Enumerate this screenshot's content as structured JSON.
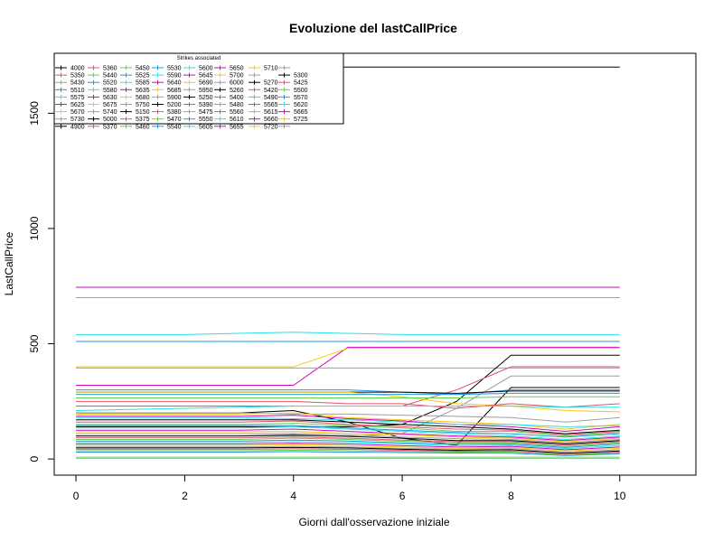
{
  "chart_data": {
    "type": "line",
    "title": "Evoluzione del lastCallPrice",
    "xlabel": "Giorni dall'osservazione iniziale",
    "ylabel": "LastCallPrice",
    "xlim": [
      -0.4,
      11.4
    ],
    "ylim": [
      -70,
      1760
    ],
    "x_ticks": [
      0,
      2,
      4,
      6,
      8,
      10
    ],
    "y_ticks": [
      0,
      500,
      1000,
      1500
    ],
    "x": [
      0,
      1,
      2,
      3,
      4,
      5,
      6,
      7,
      8,
      9,
      10
    ],
    "legend": {
      "title": "Strikes associated",
      "placement": "top-left",
      "columns": 8,
      "entries": [
        "4000",
        "5350",
        "5430",
        "5510",
        "5575",
        "5625",
        "5670",
        "5730",
        "4900",
        "5360",
        "5440",
        "5520",
        "5580",
        "5630",
        "5675",
        "5740",
        "5000",
        "5370",
        "5450",
        "5525",
        "5585",
        "5635",
        "5680",
        "5750",
        "5150",
        "5375",
        "5460",
        "5530",
        "5590",
        "5640",
        "5685",
        "5900",
        "5200",
        "5380",
        "5470",
        "5540",
        "5600",
        "5645",
        "5690",
        "5950",
        "5250",
        "5390",
        "5475",
        "5550",
        "5605",
        "5650",
        "5700",
        "6000",
        "5260",
        "5400",
        "5480",
        "5560",
        "5610",
        "5655",
        "5710",
        "",
        "5270",
        "5420",
        "5490",
        "5565",
        "5615",
        "5660",
        "5720",
        "",
        "5300",
        "5425",
        "5500",
        "5570",
        "5620",
        "5665",
        "5725",
        ""
      ],
      "colors": [
        "#000000",
        "#DF536B",
        "#61D04F",
        "#2297E6",
        "#28E2E5",
        "#CD0BBC",
        "#F5C710",
        "#9E9E9E"
      ]
    },
    "series": [
      {
        "values": [
          1700,
          1700,
          1700,
          1700,
          1700,
          1700,
          1700,
          1700,
          1700,
          1700,
          1700
        ],
        "color": "#000000"
      },
      {
        "values": [
          745,
          745,
          745,
          745,
          745,
          745,
          745,
          745,
          745,
          745,
          745
        ],
        "color": "#CD0BBC"
      },
      {
        "values": [
          700,
          700,
          700,
          700,
          700,
          700,
          700,
          700,
          700,
          700,
          700
        ],
        "color": "#61D04F"
      },
      {
        "values": [
          540,
          540,
          540,
          545,
          550,
          545,
          540,
          540,
          540,
          540,
          540
        ],
        "color": "#28E2E5"
      },
      {
        "values": [
          510,
          510,
          510,
          510,
          510,
          510,
          510,
          510,
          510,
          510,
          510
        ],
        "color": "#2297E6"
      },
      {
        "values": [
          320,
          320,
          320,
          320,
          320,
          485,
          485,
          485,
          485,
          485,
          485
        ],
        "color": "#CD0BBC"
      },
      {
        "values": [
          400,
          400,
          400,
          400,
          400,
          480,
          480,
          480,
          480,
          480,
          480
        ],
        "color": "#F5C710"
      },
      {
        "values": [
          395,
          395,
          395,
          395,
          395,
          395,
          395,
          395,
          395,
          395,
          395
        ],
        "color": "#9E9E9E"
      },
      {
        "values": [
          140,
          140,
          140,
          140,
          140,
          140,
          150,
          250,
          450,
          450,
          450
        ],
        "color": "#000000"
      },
      {
        "values": [
          230,
          230,
          230,
          230,
          230,
          230,
          230,
          300,
          400,
          400,
          400
        ],
        "color": "#DF536B"
      },
      {
        "values": [
          100,
          100,
          100,
          100,
          100,
          100,
          110,
          220,
          360,
          360,
          360
        ],
        "color": "#9E9E9E"
      },
      {
        "values": [
          200,
          200,
          200,
          200,
          210,
          160,
          90,
          60,
          310,
          310,
          310
        ],
        "color": "#000000"
      },
      {
        "values": [
          300,
          300,
          300,
          300,
          300,
          300,
          290,
          280,
          300,
          300,
          300
        ],
        "color": "#2297E6"
      },
      {
        "values": [
          290,
          290,
          290,
          290,
          290,
          290,
          290,
          285,
          295,
          295,
          295
        ],
        "color": "#000000"
      },
      {
        "values": [
          290,
          290,
          290,
          290,
          290,
          290,
          270,
          240,
          230,
          210,
          205
        ],
        "color": "#F5C710"
      },
      {
        "values": [
          280,
          280,
          280,
          280,
          280,
          280,
          280,
          280,
          285,
          285,
          285
        ],
        "color": "#2297E6"
      },
      {
        "values": [
          265,
          265,
          265,
          265,
          265,
          265,
          265,
          265,
          270,
          270,
          270
        ],
        "color": "#61D04F"
      },
      {
        "values": [
          250,
          250,
          250,
          250,
          250,
          240,
          240,
          220,
          240,
          225,
          240
        ],
        "color": "#DF536B"
      },
      {
        "values": [
          210,
          215,
          220,
          225,
          230,
          230,
          230,
          230,
          230,
          225,
          225
        ],
        "color": "#28E2E5"
      },
      {
        "values": [
          200,
          200,
          200,
          200,
          195,
          195,
          190,
          185,
          180,
          160,
          180
        ],
        "color": "#9E9E9E"
      },
      {
        "values": [
          195,
          195,
          195,
          195,
          200,
          180,
          170,
          160,
          150,
          130,
          150
        ],
        "color": "#F5C710"
      },
      {
        "values": [
          185,
          185,
          185,
          185,
          190,
          175,
          165,
          150,
          140,
          120,
          140
        ],
        "color": "#CD0BBC"
      },
      {
        "values": [
          180,
          180,
          180,
          180,
          175,
          170,
          160,
          150,
          150,
          140,
          145
        ],
        "color": "#28E2E5"
      },
      {
        "values": [
          170,
          170,
          170,
          170,
          170,
          160,
          150,
          140,
          130,
          110,
          125
        ],
        "color": "#000000"
      },
      {
        "values": [
          160,
          160,
          160,
          160,
          165,
          150,
          140,
          130,
          125,
          105,
          120
        ],
        "color": "#DF536B"
      },
      {
        "values": [
          150,
          150,
          150,
          150,
          155,
          145,
          135,
          120,
          120,
          100,
          115
        ],
        "color": "#61D04F"
      },
      {
        "values": [
          145,
          145,
          145,
          145,
          145,
          135,
          125,
          115,
          110,
          95,
          110
        ],
        "color": "#2297E6"
      },
      {
        "values": [
          135,
          135,
          135,
          135,
          140,
          130,
          120,
          110,
          100,
          85,
          100
        ],
        "color": "#28E2E5"
      },
      {
        "values": [
          125,
          125,
          125,
          125,
          130,
          120,
          110,
          100,
          95,
          80,
          95
        ],
        "color": "#CD0BBC"
      },
      {
        "values": [
          118,
          118,
          118,
          118,
          120,
          112,
          105,
          95,
          90,
          75,
          90
        ],
        "color": "#F5C710"
      },
      {
        "values": [
          110,
          110,
          110,
          110,
          112,
          105,
          95,
          88,
          85,
          70,
          85
        ],
        "color": "#9E9E9E"
      },
      {
        "values": [
          100,
          100,
          100,
          100,
          105,
          98,
          90,
          80,
          80,
          65,
          80
        ],
        "color": "#000000"
      },
      {
        "values": [
          92,
          92,
          92,
          92,
          96,
          90,
          82,
          75,
          75,
          60,
          75
        ],
        "color": "#DF536B"
      },
      {
        "values": [
          85,
          85,
          85,
          85,
          90,
          85,
          77,
          70,
          70,
          55,
          70
        ],
        "color": "#61D04F"
      },
      {
        "values": [
          78,
          78,
          78,
          78,
          82,
          78,
          70,
          64,
          65,
          50,
          65
        ],
        "color": "#2297E6"
      },
      {
        "values": [
          72,
          72,
          72,
          72,
          75,
          72,
          65,
          58,
          60,
          45,
          58
        ],
        "color": "#28E2E5"
      },
      {
        "values": [
          65,
          65,
          65,
          65,
          68,
          65,
          58,
          52,
          55,
          40,
          52
        ],
        "color": "#CD0BBC"
      },
      {
        "values": [
          58,
          58,
          58,
          58,
          62,
          58,
          52,
          46,
          50,
          35,
          46
        ],
        "color": "#F5C710"
      },
      {
        "values": [
          52,
          52,
          52,
          52,
          55,
          52,
          46,
          42,
          45,
          30,
          40
        ],
        "color": "#9E9E9E"
      },
      {
        "values": [
          48,
          48,
          48,
          48,
          50,
          48,
          42,
          38,
          40,
          25,
          35
        ],
        "color": "#000000"
      },
      {
        "values": [
          42,
          42,
          42,
          42,
          44,
          42,
          38,
          34,
          35,
          20,
          30
        ],
        "color": "#DF536B"
      },
      {
        "values": [
          36,
          36,
          36,
          36,
          38,
          36,
          33,
          30,
          30,
          18,
          26
        ],
        "color": "#61D04F"
      },
      {
        "values": [
          30,
          30,
          30,
          30,
          32,
          30,
          28,
          26,
          25,
          15,
          22
        ],
        "color": "#2297E6"
      },
      {
        "values": [
          8,
          8,
          8,
          8,
          8,
          8,
          8,
          8,
          8,
          8,
          8
        ],
        "color": "#61D04F"
      },
      {
        "values": [
          2,
          2,
          2,
          2,
          2,
          2,
          2,
          2,
          2,
          2,
          2
        ],
        "color": "#28E2E5"
      }
    ]
  }
}
